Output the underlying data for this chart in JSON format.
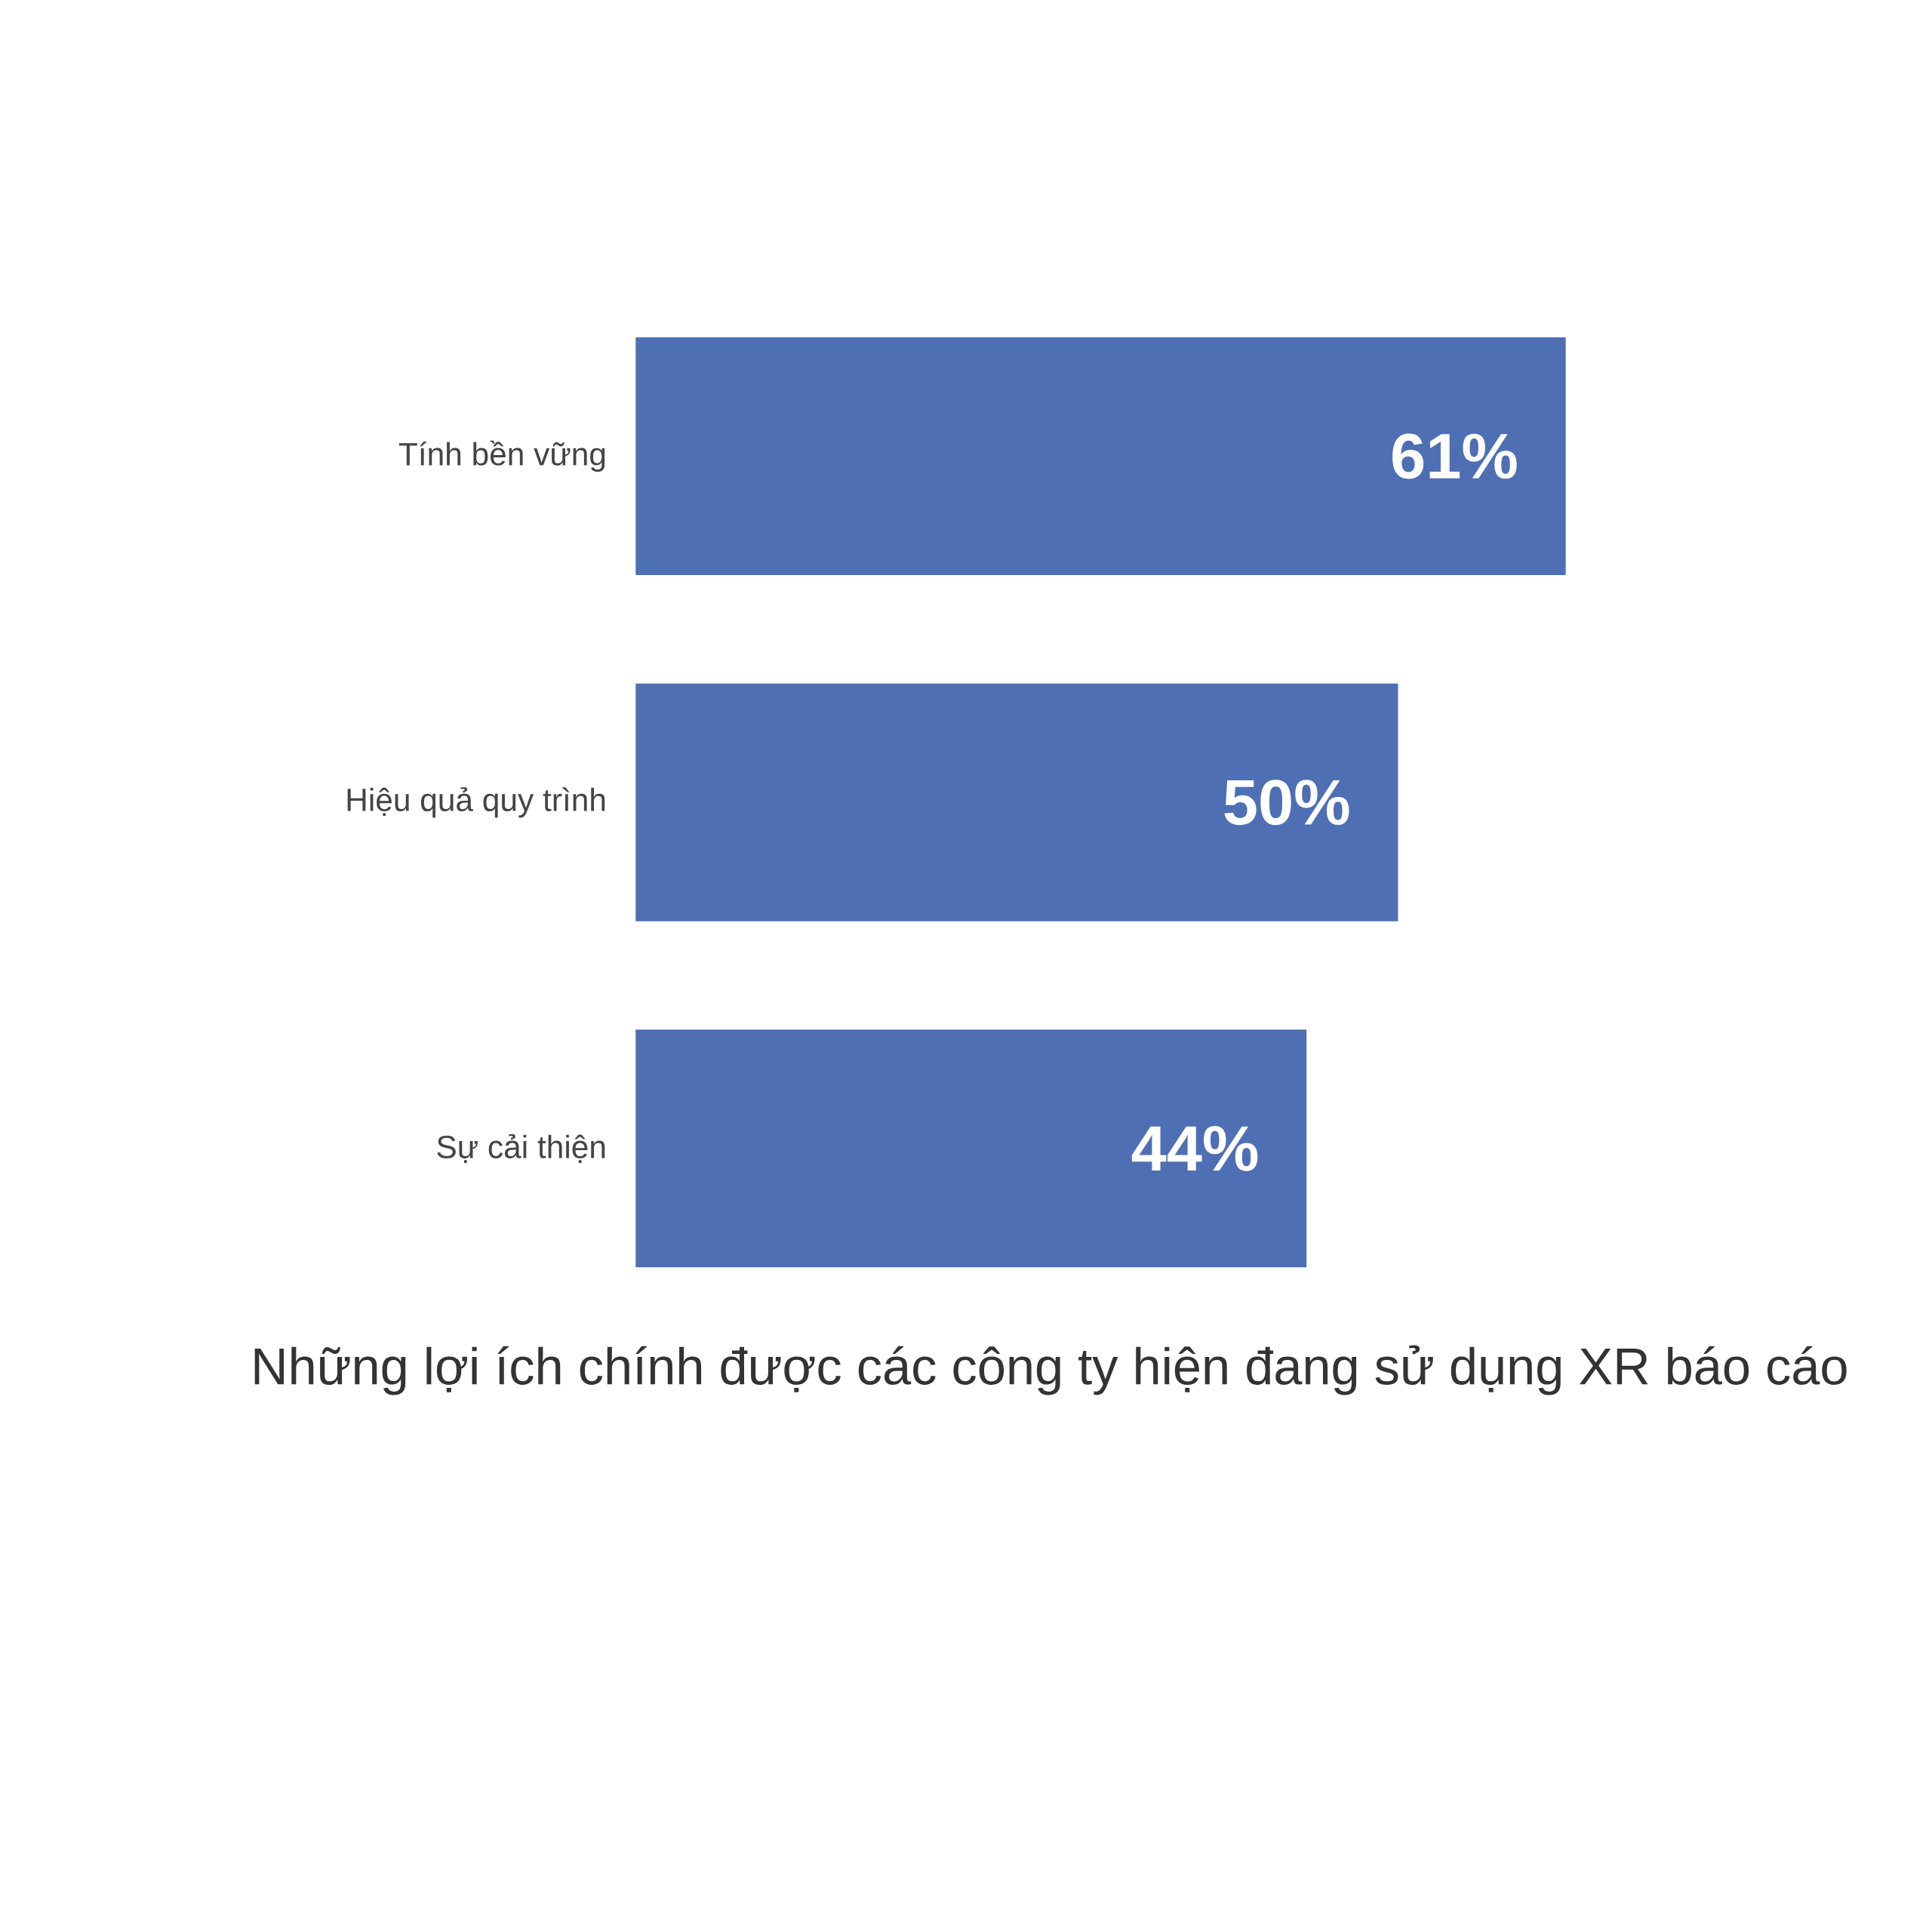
{
  "chart_data": {
    "type": "bar",
    "orientation": "horizontal",
    "title": "Những lợi ích chính được các công ty hiện đang sử dụng XR báo cáo",
    "categories": [
      "Tính bền vững",
      "Hiệu quả quy trình",
      "Sự cải thiện"
    ],
    "values": [
      61,
      50,
      44
    ],
    "color": "#4f6fb4",
    "value_labels": [
      "61%",
      "50%",
      "44%"
    ],
    "tick_labels": "y"
  }
}
